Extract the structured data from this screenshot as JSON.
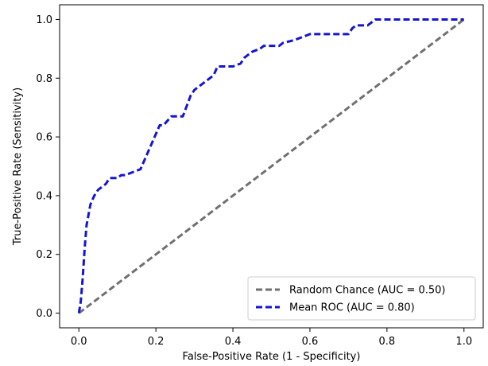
{
  "chart_data": {
    "type": "line",
    "title": "",
    "xlabel": "False-Positive Rate (1 - Specificity)",
    "ylabel": "True-Positive Rate (Sensitivity)",
    "xlim": [
      -0.05,
      1.05
    ],
    "ylim": [
      -0.05,
      1.05
    ],
    "xticks": [
      0.0,
      0.2,
      0.4,
      0.6,
      0.8,
      1.0
    ],
    "yticks": [
      0.0,
      0.2,
      0.4,
      0.6,
      0.8,
      1.0
    ],
    "xtick_labels": [
      "0.0",
      "0.2",
      "0.4",
      "0.6",
      "0.8",
      "1.0"
    ],
    "ytick_labels": [
      "0.0",
      "0.2",
      "0.4",
      "0.6",
      "0.8",
      "1.0"
    ],
    "grid": false,
    "legend_position": "lower-right",
    "series": [
      {
        "name": "Random Chance (AUC = 0.50)",
        "color": "#707070",
        "style": "dashed",
        "x": [
          0.0,
          1.0
        ],
        "y": [
          0.0,
          1.0
        ]
      },
      {
        "name": "Mean ROC (AUC = 0.80)",
        "color": "#1515d0",
        "style": "dashed",
        "x": [
          0.0,
          0.005,
          0.01,
          0.015,
          0.02,
          0.03,
          0.04,
          0.05,
          0.06,
          0.07,
          0.08,
          0.1,
          0.11,
          0.12,
          0.14,
          0.16,
          0.17,
          0.19,
          0.2,
          0.21,
          0.22,
          0.24,
          0.25,
          0.27,
          0.29,
          0.3,
          0.32,
          0.33,
          0.35,
          0.36,
          0.38,
          0.4,
          0.42,
          0.43,
          0.45,
          0.47,
          0.48,
          0.5,
          0.52,
          0.53,
          0.56,
          0.58,
          0.6,
          0.63,
          0.66,
          0.7,
          0.71,
          0.72,
          0.73,
          0.75,
          0.76,
          0.77,
          0.78,
          0.8,
          0.85,
          0.88,
          0.9,
          0.92,
          0.95,
          0.98,
          1.0
        ],
        "y": [
          0.0,
          0.04,
          0.12,
          0.22,
          0.3,
          0.37,
          0.4,
          0.42,
          0.43,
          0.44,
          0.46,
          0.46,
          0.47,
          0.47,
          0.48,
          0.49,
          0.52,
          0.58,
          0.61,
          0.64,
          0.64,
          0.67,
          0.67,
          0.67,
          0.74,
          0.76,
          0.78,
          0.79,
          0.81,
          0.84,
          0.84,
          0.84,
          0.85,
          0.87,
          0.89,
          0.9,
          0.91,
          0.91,
          0.91,
          0.92,
          0.93,
          0.94,
          0.95,
          0.95,
          0.95,
          0.95,
          0.97,
          0.98,
          0.98,
          0.98,
          0.99,
          1.0,
          1.0,
          1.0,
          1.0,
          1.0,
          1.0,
          1.0,
          1.0,
          1.0,
          1.0
        ]
      }
    ]
  }
}
